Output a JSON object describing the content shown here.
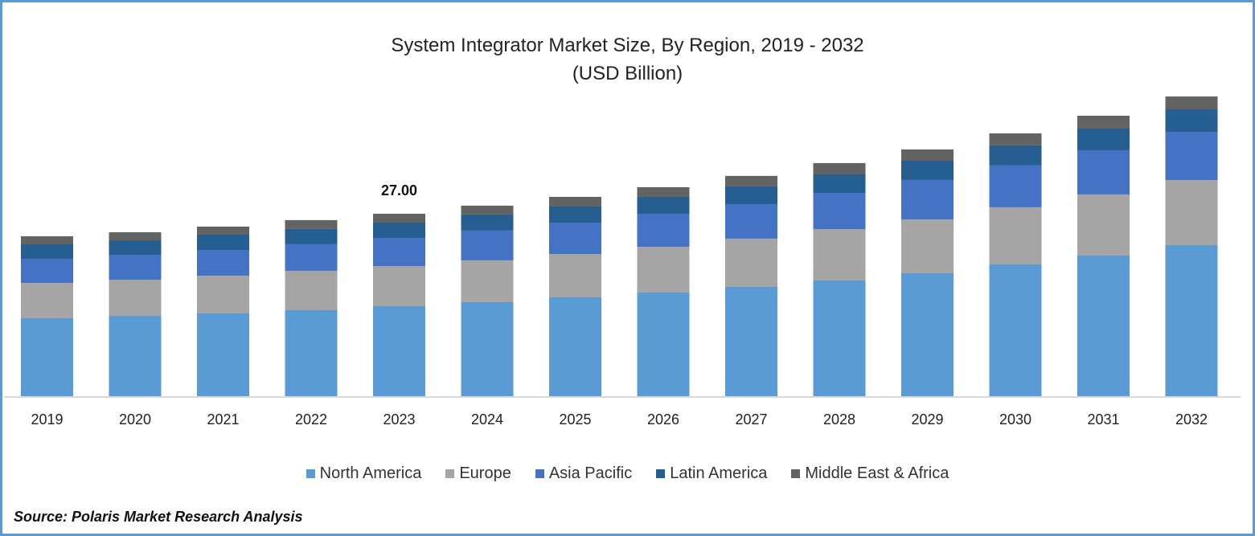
{
  "chart_data": {
    "type": "bar",
    "stacked": true,
    "title": "System Integrator Market Size, By Region, 2019 - 2032",
    "subtitle": "(USD Billion)",
    "xlabel": "",
    "ylabel": "",
    "categories": [
      "2019",
      "2020",
      "2021",
      "2022",
      "2023",
      "2024",
      "2025",
      "2026",
      "2027",
      "2028",
      "2029",
      "2030",
      "2031",
      "2032"
    ],
    "ylim": [
      0,
      45
    ],
    "grid": false,
    "legend_position": "bottom",
    "series": [
      {
        "name": "North America",
        "color": "#5b9bd5",
        "values": [
          11.54,
          11.89,
          12.25,
          12.73,
          13.32,
          13.92,
          14.63,
          15.34,
          16.18,
          17.13,
          18.2,
          19.51,
          20.82,
          22.36
        ]
      },
      {
        "name": "Europe",
        "color": "#a5a5a5",
        "values": [
          5.23,
          5.35,
          5.59,
          5.83,
          5.95,
          6.19,
          6.42,
          6.78,
          7.14,
          7.61,
          7.97,
          8.45,
          9.04,
          9.63
        ]
      },
      {
        "name": "Asia Pacific",
        "color": "#4472c4",
        "values": [
          3.57,
          3.69,
          3.81,
          3.93,
          4.16,
          4.4,
          4.64,
          4.88,
          5.11,
          5.35,
          5.83,
          6.19,
          6.54,
          7.14
        ]
      },
      {
        "name": "Latin America",
        "color": "#255e91",
        "values": [
          2.14,
          2.14,
          2.26,
          2.26,
          2.26,
          2.38,
          2.38,
          2.5,
          2.62,
          2.74,
          2.85,
          2.97,
          3.21,
          3.33
        ]
      },
      {
        "name": "Middle East & Africa",
        "color": "#636363",
        "values": [
          1.19,
          1.19,
          1.19,
          1.31,
          1.31,
          1.31,
          1.43,
          1.43,
          1.55,
          1.67,
          1.67,
          1.78,
          1.9,
          1.9
        ]
      }
    ],
    "annotations": [
      {
        "category": "2023",
        "text": "27.00"
      }
    ]
  },
  "source": "Source: Polaris Market Research Analysis"
}
